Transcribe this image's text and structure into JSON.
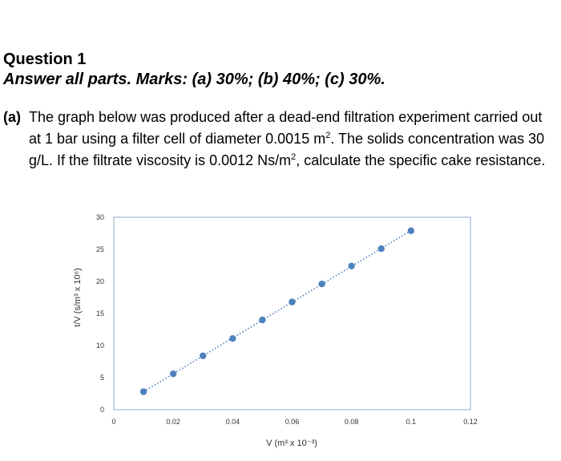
{
  "question": {
    "title": "Question 1",
    "instructions": "Answer all parts. Marks: (a) 30%; (b) 40%; (c) 30%."
  },
  "part_a": {
    "label": "(a)",
    "text_1": "The graph below was produced after a dead-end filtration experiment carried out at 1 bar using a filter cell of diameter 0.0015 m",
    "sup_1": "2",
    "text_2": ". The solids concentration was 30 g/L. If the filtrate viscosity is 0.0012 Ns/m",
    "sup_2": "2",
    "text_3": ", calculate the specific cake resistance."
  },
  "chart_data": {
    "type": "scatter",
    "x": [
      0.01,
      0.02,
      0.03,
      0.04,
      0.05,
      0.06,
      0.07,
      0.08,
      0.09,
      0.1
    ],
    "y": [
      2.8,
      5.6,
      8.4,
      11.1,
      14.0,
      16.8,
      19.6,
      22.4,
      25.1,
      27.9
    ],
    "xlim": [
      0,
      0.12
    ],
    "ylim": [
      0,
      30
    ],
    "xticks": [
      "0",
      "0.02",
      "0.04",
      "0.06",
      "0.08",
      "0.1",
      "0.12"
    ],
    "yticks": [
      "0",
      "5",
      "10",
      "15",
      "20",
      "25",
      "30"
    ],
    "xlabel": "V (m³ x 10⁻³)",
    "ylabel": "t/V (s/m³ x 10⁶)",
    "trendline": "linear, dotted",
    "grid": false,
    "marker_color": "#4f81bd",
    "frame_color": "#8fa9cf"
  }
}
